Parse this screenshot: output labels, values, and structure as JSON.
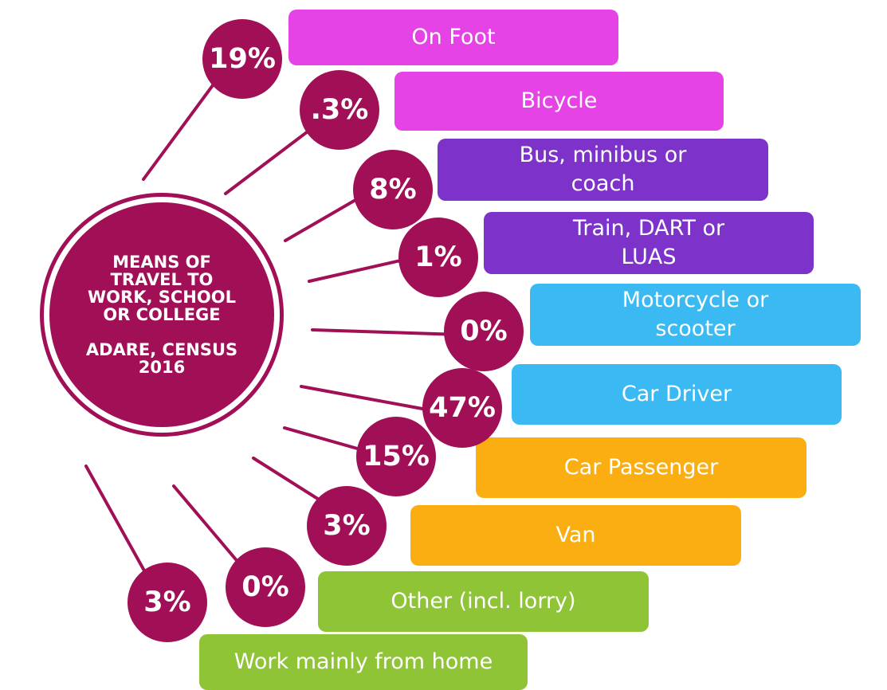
{
  "hub": {
    "title": "MEANS OF TRAVEL TO WORK, SCHOOL OR COLLEGE",
    "subtitle": "ADARE, CENSUS 2016"
  },
  "chart_data": {
    "type": "radial-infographic",
    "categories": [
      "On Foot",
      "Bicycle",
      "Bus, minibus or coach",
      "Train, DART or LUAS",
      "Motorcycle or scooter",
      "Car Driver",
      "Car Passenger",
      "Van",
      "Other (incl. lorry)",
      "Work mainly from home"
    ],
    "labels": [
      "19%",
      ".3%",
      "8%",
      "1%",
      "0%",
      "47%",
      "15%",
      "3%",
      "0%",
      "3%"
    ],
    "values": [
      19,
      0.3,
      8,
      1,
      0,
      47,
      15,
      3,
      0,
      3
    ],
    "unit": "%"
  },
  "colors": {
    "circle": "#a10f56",
    "pink": "#e543e6",
    "purple": "#7d33c9",
    "blue": "#3bb9f2",
    "orange": "#fbae12",
    "green": "#8fc437"
  },
  "modes": [
    {
      "label": "On Foot",
      "percent": "19%",
      "color": "#e543e6"
    },
    {
      "label": "Bicycle",
      "percent": ".3%",
      "color": "#e543e6"
    },
    {
      "label": "Bus, minibus or coach",
      "line1": "Bus, minibus or",
      "line2": "coach",
      "percent": "8%",
      "color": "#7d33c9"
    },
    {
      "label": "Train, DART or LUAS",
      "line1": "Train, DART or",
      "line2": "LUAS",
      "percent": "1%",
      "color": "#7d33c9"
    },
    {
      "label": "Motorcycle or scooter",
      "line1": "Motorcycle or",
      "line2": "scooter",
      "percent": "0%",
      "color": "#3bb9f2"
    },
    {
      "label": "Car Driver",
      "percent": "47%",
      "color": "#3bb9f2"
    },
    {
      "label": "Car Passenger",
      "percent": "15%",
      "color": "#fbae12"
    },
    {
      "label": "Van",
      "percent": "3%",
      "color": "#fbae12"
    },
    {
      "label": "Other (incl. lorry)",
      "percent": "0%",
      "color": "#8fc437"
    },
    {
      "label": "Work mainly from home",
      "percent": "3%",
      "color": "#8fc437"
    }
  ]
}
